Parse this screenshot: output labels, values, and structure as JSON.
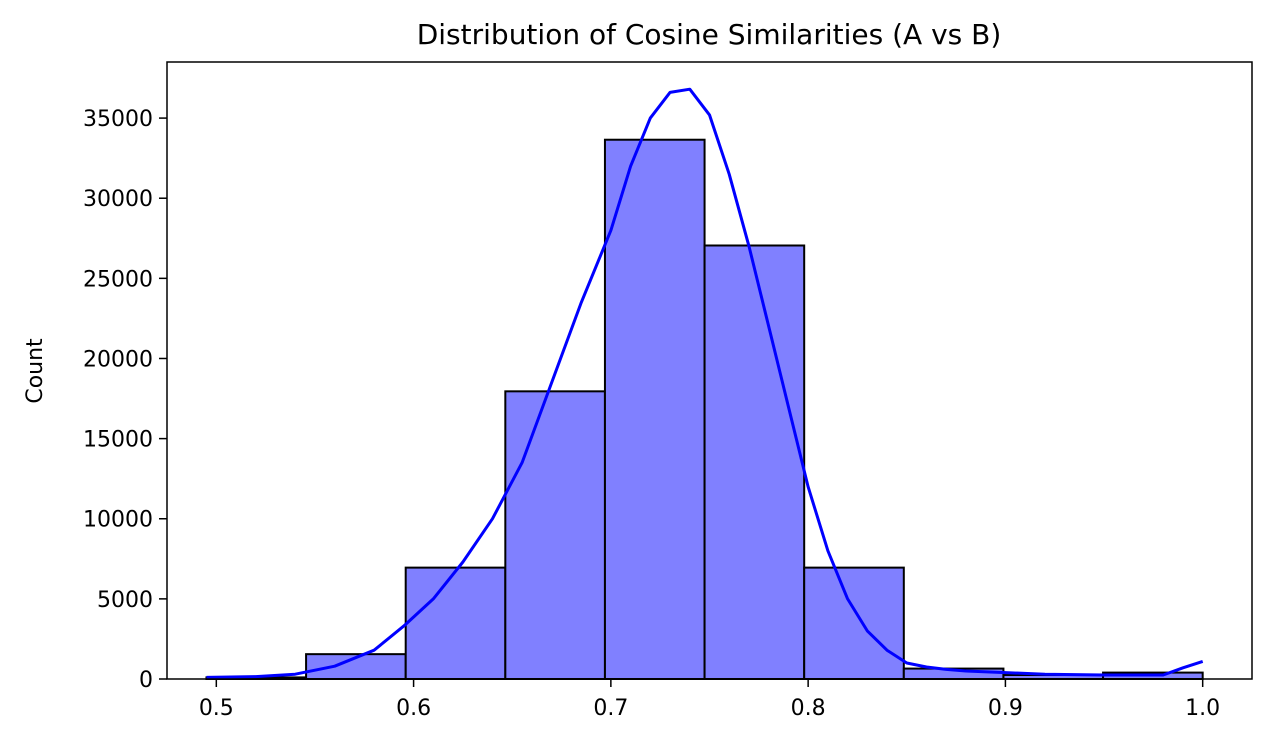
{
  "chart_data": {
    "type": "bar",
    "title": "Distribution of Cosine Similarities (A vs B)",
    "xlabel": "",
    "ylabel": "Count",
    "xlim": [
      0.475,
      1.025
    ],
    "ylim": [
      0,
      38500
    ],
    "x_ticks": [
      0.5,
      0.6,
      0.7,
      0.8,
      0.9,
      1.0
    ],
    "x_tick_labels": [
      "0.5",
      "0.6",
      "0.7",
      "0.8",
      "0.9",
      "1.0"
    ],
    "y_ticks": [
      0,
      5000,
      10000,
      15000,
      20000,
      25000,
      30000,
      35000
    ],
    "y_tick_labels": [
      "0",
      "5000",
      "10000",
      "15000",
      "20000",
      "25000",
      "30000",
      "35000"
    ],
    "bins": [
      {
        "x0": 0.495,
        "x1": 0.5455,
        "count": 100
      },
      {
        "x0": 0.5455,
        "x1": 0.596,
        "count": 1550
      },
      {
        "x0": 0.596,
        "x1": 0.6465,
        "count": 6950
      },
      {
        "x0": 0.6465,
        "x1": 0.697,
        "count": 17950
      },
      {
        "x0": 0.697,
        "x1": 0.7475,
        "count": 33650
      },
      {
        "x0": 0.7475,
        "x1": 0.798,
        "count": 27050
      },
      {
        "x0": 0.798,
        "x1": 0.8485,
        "count": 6950
      },
      {
        "x0": 0.8485,
        "x1": 0.899,
        "count": 650
      },
      {
        "x0": 0.899,
        "x1": 0.9495,
        "count": 250
      },
      {
        "x0": 0.9495,
        "x1": 1.0,
        "count": 400
      }
    ],
    "kde": {
      "x": [
        0.495,
        0.52,
        0.54,
        0.56,
        0.58,
        0.595,
        0.61,
        0.625,
        0.64,
        0.655,
        0.67,
        0.685,
        0.7,
        0.71,
        0.72,
        0.73,
        0.74,
        0.75,
        0.76,
        0.77,
        0.78,
        0.79,
        0.8,
        0.81,
        0.82,
        0.83,
        0.84,
        0.85,
        0.86,
        0.87,
        0.88,
        0.9,
        0.92,
        0.95,
        0.98,
        0.99,
        1.0
      ],
      "y": [
        100,
        150,
        300,
        800,
        1800,
        3300,
        5000,
        7300,
        10000,
        13500,
        18500,
        23500,
        28000,
        32000,
        35000,
        36600,
        36800,
        35200,
        31500,
        27000,
        22000,
        17000,
        12000,
        8000,
        5000,
        3000,
        1800,
        1000,
        750,
        600,
        500,
        400,
        300,
        250,
        250,
        700,
        1100
      ]
    },
    "bar_fill": "#8080ff",
    "bar_edge": "#000000",
    "kde_color": "#0000ff",
    "grid": false,
    "legend": "none"
  }
}
